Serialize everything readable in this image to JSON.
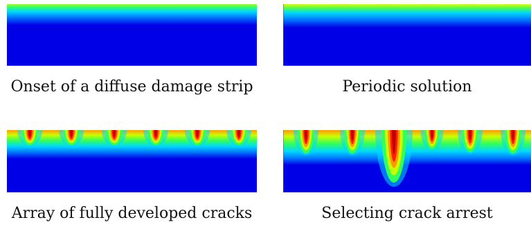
{
  "panels": [
    {
      "caption": "Onset of a diffuse damage strip",
      "crack_count": 0
    },
    {
      "caption": "Periodic solution",
      "crack_count": 0
    },
    {
      "caption": "Array of fully developed cracks",
      "crack_count": 6
    },
    {
      "caption": "Selecting crack arrest",
      "crack_count": 6
    }
  ],
  "colormap": [
    "#0000e6",
    "#0060ff",
    "#00d8ff",
    "#30ff60",
    "#c8ff00",
    "#ff9a00",
    "#ff2000",
    "#c00000"
  ]
}
